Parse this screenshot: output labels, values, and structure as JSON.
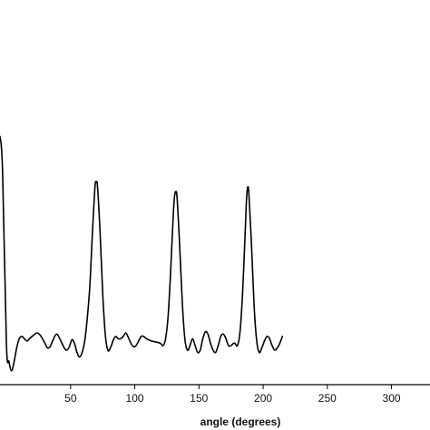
{
  "chart_data": {
    "type": "line",
    "title": "",
    "xlabel": "angle (degrees)",
    "ylabel": "",
    "xlim": [
      -5,
      330
    ],
    "ylim": [
      -0.08,
      1.12
    ],
    "x_ticks": [
      50,
      100,
      150,
      200,
      250,
      300
    ],
    "x_tick_labels": [
      "50",
      "100",
      "150",
      "200",
      "250",
      "300"
    ],
    "grid": false,
    "series": [
      {
        "color": "#000000",
        "points": [
          [
            -5,
            1.0
          ],
          [
            -3,
            0.85
          ],
          [
            0,
            0.1
          ],
          [
            2,
            0.02
          ],
          [
            4,
            -0.02
          ],
          [
            6,
            0.02
          ],
          [
            8,
            0.08
          ],
          [
            10,
            0.12
          ],
          [
            12,
            0.13
          ],
          [
            14,
            0.12
          ],
          [
            16,
            0.11
          ],
          [
            18,
            0.12
          ],
          [
            20,
            0.13
          ],
          [
            24,
            0.145
          ],
          [
            27,
            0.13
          ],
          [
            30,
            0.1
          ],
          [
            32,
            0.08
          ],
          [
            34,
            0.085
          ],
          [
            36,
            0.11
          ],
          [
            39,
            0.14
          ],
          [
            42,
            0.115
          ],
          [
            45,
            0.08
          ],
          [
            47,
            0.07
          ],
          [
            49,
            0.085
          ],
          [
            51,
            0.115
          ],
          [
            53,
            0.1
          ],
          [
            55,
            0.06
          ],
          [
            57,
            0.04
          ],
          [
            59,
            0.06
          ],
          [
            61,
            0.11
          ],
          [
            63,
            0.21
          ],
          [
            65,
            0.35
          ],
          [
            67,
            0.58
          ],
          [
            69,
            0.78
          ],
          [
            70,
            0.8
          ],
          [
            71,
            0.78
          ],
          [
            73,
            0.58
          ],
          [
            75,
            0.32
          ],
          [
            77,
            0.14
          ],
          [
            79,
            0.07
          ],
          [
            81,
            0.08
          ],
          [
            83,
            0.11
          ],
          [
            85,
            0.13
          ],
          [
            87,
            0.12
          ],
          [
            89,
            0.12
          ],
          [
            91,
            0.13
          ],
          [
            93,
            0.145
          ],
          [
            95,
            0.125
          ],
          [
            97,
            0.1
          ],
          [
            99,
            0.085
          ],
          [
            101,
            0.09
          ],
          [
            103,
            0.11
          ],
          [
            105,
            0.13
          ],
          [
            107,
            0.13
          ],
          [
            109,
            0.12
          ],
          [
            113,
            0.11
          ],
          [
            117,
            0.105
          ],
          [
            120,
            0.1
          ],
          [
            122,
            0.09
          ],
          [
            124,
            0.12
          ],
          [
            126,
            0.22
          ],
          [
            128,
            0.42
          ],
          [
            130,
            0.66
          ],
          [
            131,
            0.74
          ],
          [
            132,
            0.76
          ],
          [
            133,
            0.73
          ],
          [
            135,
            0.52
          ],
          [
            137,
            0.28
          ],
          [
            139,
            0.12
          ],
          [
            141,
            0.07
          ],
          [
            143,
            0.09
          ],
          [
            145,
            0.12
          ],
          [
            147,
            0.09
          ],
          [
            149,
            0.06
          ],
          [
            151,
            0.07
          ],
          [
            153,
            0.12
          ],
          [
            155,
            0.15
          ],
          [
            157,
            0.14
          ],
          [
            159,
            0.1
          ],
          [
            161,
            0.07
          ],
          [
            163,
            0.06
          ],
          [
            165,
            0.09
          ],
          [
            167,
            0.13
          ],
          [
            169,
            0.14
          ],
          [
            171,
            0.12
          ],
          [
            173,
            0.09
          ],
          [
            175,
            0.09
          ],
          [
            177,
            0.1
          ],
          [
            178,
            0.1
          ],
          [
            180,
            0.09
          ],
          [
            182,
            0.15
          ],
          [
            184,
            0.32
          ],
          [
            186,
            0.58
          ],
          [
            187,
            0.72
          ],
          [
            188,
            0.78
          ],
          [
            189,
            0.74
          ],
          [
            191,
            0.52
          ],
          [
            193,
            0.26
          ],
          [
            195,
            0.11
          ],
          [
            197,
            0.06
          ],
          [
            199,
            0.08
          ],
          [
            201,
            0.11
          ],
          [
            203,
            0.13
          ],
          [
            205,
            0.12
          ],
          [
            207,
            0.09
          ],
          [
            209,
            0.07
          ],
          [
            211,
            0.08
          ],
          [
            213,
            0.1
          ],
          [
            215,
            0.13
          ]
        ]
      }
    ]
  }
}
